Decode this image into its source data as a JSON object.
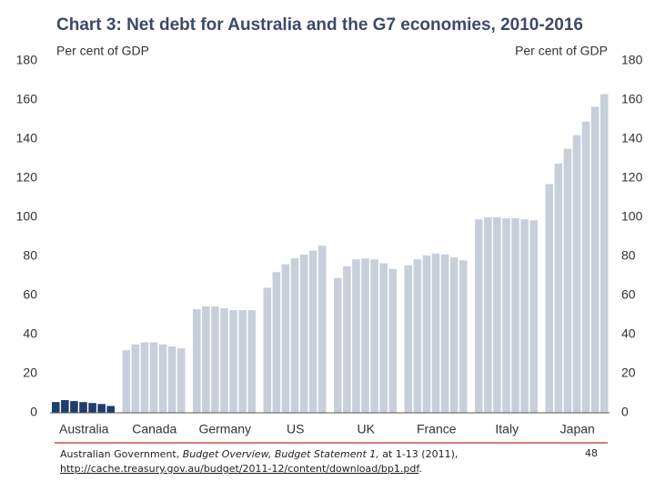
{
  "chart_data": {
    "type": "grouped_bar",
    "title": "Chart 3: Net debt for Australia and the G7 economies, 2010-2016",
    "ylabel": "Per cent of GDP",
    "y2label": "Per cent of GDP",
    "categories": [
      "Australia",
      "Canada",
      "Germany",
      "US",
      "UK",
      "France",
      "Italy",
      "Japan"
    ],
    "category_colors": [
      "#1f3d6e",
      "#c8cfdb",
      "#c8cfdb",
      "#c8cfdb",
      "#c8cfdb",
      "#c8cfdb",
      "#c8cfdb",
      "#c8cfdb"
    ],
    "series": [
      {
        "values": [
          5.5,
          32,
          53,
          64,
          69,
          75.5,
          99,
          117
        ]
      },
      {
        "values": [
          6.5,
          35,
          54.5,
          72,
          75,
          78.5,
          100,
          127.5
        ]
      },
      {
        "values": [
          6,
          36,
          54.5,
          76,
          78.5,
          80.5,
          100,
          135
        ]
      },
      {
        "values": [
          5.5,
          36,
          53.5,
          79,
          79,
          81.5,
          99.5,
          142
        ]
      },
      {
        "values": [
          5,
          35,
          52.5,
          81,
          78.5,
          81,
          99.5,
          149
        ]
      },
      {
        "values": [
          4.5,
          34,
          52.5,
          83,
          76.5,
          79.5,
          99,
          156.5
        ]
      },
      {
        "values": [
          3.5,
          33,
          52.5,
          85.5,
          73.5,
          78,
          98.5,
          163
        ]
      }
    ],
    "ylim": [
      0,
      180
    ],
    "yticks": [
      0,
      20,
      40,
      60,
      80,
      100,
      120,
      140,
      160,
      180
    ],
    "y2lim": [
      0,
      180
    ],
    "y2ticks": [
      0,
      20,
      40,
      60,
      80,
      100,
      120,
      140,
      160,
      180
    ]
  },
  "footer": {
    "author": "Australian Government, ",
    "work": "Budget Overview, Budget Statement 1,",
    "cite": " at 1-13 (2011),",
    "url": "http://cache.treasury.gov.au/budget/2011-12/content/download/bp1.pdf",
    "end": ".",
    "page": "48"
  }
}
